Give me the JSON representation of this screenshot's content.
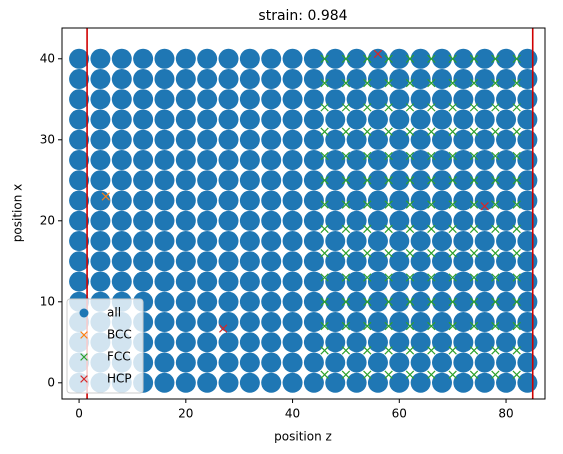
{
  "chart_data": {
    "type": "scatter",
    "title": "strain: 0.984",
    "x_label": "position z",
    "y_label": "position x",
    "xlim": [
      -3.2,
      87.3
    ],
    "ylim": [
      -2.0,
      43.8
    ],
    "xticks": [
      0,
      20,
      40,
      60,
      80
    ],
    "yticks": [
      0,
      10,
      20,
      30,
      40
    ],
    "legend_position": "lower left",
    "vlines": {
      "color": "#d00000",
      "x": [
        1.5,
        85
      ]
    },
    "series": [
      {
        "name": "all",
        "color": "#1f77b4",
        "marker": "o",
        "x": [
          0,
          4,
          8,
          12,
          16,
          20,
          24,
          28,
          32,
          36,
          40,
          44,
          48,
          52,
          56,
          60,
          64,
          68,
          72,
          76,
          80,
          84,
          0,
          4,
          8,
          12,
          16,
          20,
          24,
          28,
          32,
          36,
          40,
          44,
          48,
          52,
          56,
          60,
          64,
          68,
          72,
          76,
          80,
          84,
          0,
          4,
          8,
          12,
          16,
          20,
          24,
          28,
          32,
          36,
          40,
          44,
          48,
          52,
          56,
          60,
          64,
          68,
          72,
          76,
          80,
          84,
          0,
          4,
          8,
          12,
          16,
          20,
          24,
          28,
          32,
          36,
          40,
          44,
          48,
          52,
          56,
          60,
          64,
          68,
          72,
          76,
          80,
          84,
          0,
          4,
          8,
          12,
          16,
          20,
          24,
          28,
          32,
          36,
          40,
          44,
          48,
          52,
          56,
          60,
          64,
          68,
          72,
          76,
          80,
          84,
          0,
          4,
          8,
          12,
          16,
          20,
          24,
          28,
          32,
          36,
          40,
          44,
          48,
          52,
          56,
          60,
          64,
          68,
          72,
          76,
          80,
          84,
          0,
          4,
          8,
          12,
          16,
          20,
          24,
          28,
          32,
          36,
          40,
          44,
          48,
          52,
          56,
          60,
          64,
          68,
          72,
          76,
          80,
          84,
          0,
          4,
          8,
          12,
          16,
          20,
          24,
          28,
          32,
          36,
          40,
          44,
          48,
          52,
          56,
          60,
          64,
          68,
          72,
          76,
          80,
          84,
          0,
          4,
          8,
          12,
          16,
          20,
          24,
          28,
          32,
          36,
          40,
          44,
          48,
          52,
          56,
          60,
          64,
          68,
          72,
          76,
          80,
          84,
          0,
          4,
          8,
          12,
          16,
          20,
          24,
          28,
          32,
          36,
          40,
          44,
          48,
          52,
          56,
          60,
          64,
          68,
          72,
          76,
          80,
          84,
          0,
          4,
          8,
          12,
          16,
          20,
          24,
          28,
          32,
          36,
          40,
          44,
          48,
          52,
          56,
          60,
          64,
          68,
          72,
          76,
          80,
          84,
          0,
          4,
          8,
          12,
          16,
          20,
          24,
          28,
          32,
          36,
          40,
          44,
          48,
          52,
          56,
          60,
          64,
          68,
          72,
          76,
          80,
          84,
          0,
          4,
          8,
          12,
          16,
          20,
          24,
          28,
          32,
          36,
          40,
          44,
          48,
          52,
          56,
          60,
          64,
          68,
          72,
          76,
          80,
          84,
          0,
          4,
          8,
          12,
          16,
          20,
          24,
          28,
          32,
          36,
          40,
          44,
          48,
          52,
          56,
          60,
          64,
          68,
          72,
          76,
          80,
          84,
          0,
          4,
          8,
          12,
          16,
          20,
          24,
          28,
          32,
          36,
          40,
          44,
          48,
          52,
          56,
          60,
          64,
          68,
          72,
          76,
          80,
          84,
          0,
          4,
          8,
          12,
          16,
          20,
          24,
          28,
          32,
          36,
          40,
          44,
          48,
          52,
          56,
          60,
          64,
          68,
          72,
          76,
          80,
          84,
          0,
          4,
          8,
          12,
          16,
          20,
          24,
          28,
          32,
          36,
          40,
          44,
          48,
          52,
          56,
          60,
          64,
          68,
          72,
          76,
          80,
          84
        ],
        "y": [
          0,
          0,
          0,
          0,
          0,
          0,
          0,
          0,
          0,
          0,
          0,
          0,
          0,
          0,
          0,
          0,
          0,
          0,
          0,
          0,
          0,
          0,
          2.5,
          2.5,
          2.5,
          2.5,
          2.5,
          2.5,
          2.5,
          2.5,
          2.5,
          2.5,
          2.5,
          2.5,
          2.5,
          2.5,
          2.5,
          2.5,
          2.5,
          2.5,
          2.5,
          2.5,
          2.5,
          2.5,
          5,
          5,
          5,
          5,
          5,
          5,
          5,
          5,
          5,
          5,
          5,
          5,
          5,
          5,
          5,
          5,
          5,
          5,
          5,
          5,
          5,
          5,
          7.5,
          7.5,
          7.5,
          7.5,
          7.5,
          7.5,
          7.5,
          7.5,
          7.5,
          7.5,
          7.5,
          7.5,
          7.5,
          7.5,
          7.5,
          7.5,
          7.5,
          7.5,
          7.5,
          7.5,
          7.5,
          7.5,
          10,
          10,
          10,
          10,
          10,
          10,
          10,
          10,
          10,
          10,
          10,
          10,
          10,
          10,
          10,
          10,
          10,
          10,
          10,
          10,
          10,
          10,
          12.5,
          12.5,
          12.5,
          12.5,
          12.5,
          12.5,
          12.5,
          12.5,
          12.5,
          12.5,
          12.5,
          12.5,
          12.5,
          12.5,
          12.5,
          12.5,
          12.5,
          12.5,
          12.5,
          12.5,
          12.5,
          12.5,
          15,
          15,
          15,
          15,
          15,
          15,
          15,
          15,
          15,
          15,
          15,
          15,
          15,
          15,
          15,
          15,
          15,
          15,
          15,
          15,
          15,
          15,
          17.5,
          17.5,
          17.5,
          17.5,
          17.5,
          17.5,
          17.5,
          17.5,
          17.5,
          17.5,
          17.5,
          17.5,
          17.5,
          17.5,
          17.5,
          17.5,
          17.5,
          17.5,
          17.5,
          17.5,
          17.5,
          17.5,
          20,
          20,
          20,
          20,
          20,
          20,
          20,
          20,
          20,
          20,
          20,
          20,
          20,
          20,
          20,
          20,
          20,
          20,
          20,
          20,
          20,
          20,
          22.5,
          22.5,
          22.5,
          22.5,
          22.5,
          22.5,
          22.5,
          22.5,
          22.5,
          22.5,
          22.5,
          22.5,
          22.5,
          22.5,
          22.5,
          22.5,
          22.5,
          22.5,
          22.5,
          22.5,
          22.5,
          22.5,
          25,
          25,
          25,
          25,
          25,
          25,
          25,
          25,
          25,
          25,
          25,
          25,
          25,
          25,
          25,
          25,
          25,
          25,
          25,
          25,
          25,
          25,
          27.5,
          27.5,
          27.5,
          27.5,
          27.5,
          27.5,
          27.5,
          27.5,
          27.5,
          27.5,
          27.5,
          27.5,
          27.5,
          27.5,
          27.5,
          27.5,
          27.5,
          27.5,
          27.5,
          27.5,
          27.5,
          27.5,
          30,
          30,
          30,
          30,
          30,
          30,
          30,
          30,
          30,
          30,
          30,
          30,
          30,
          30,
          30,
          30,
          30,
          30,
          30,
          30,
          30,
          30,
          32.5,
          32.5,
          32.5,
          32.5,
          32.5,
          32.5,
          32.5,
          32.5,
          32.5,
          32.5,
          32.5,
          32.5,
          32.5,
          32.5,
          32.5,
          32.5,
          32.5,
          32.5,
          32.5,
          32.5,
          32.5,
          32.5,
          35,
          35,
          35,
          35,
          35,
          35,
          35,
          35,
          35,
          35,
          35,
          35,
          35,
          35,
          35,
          35,
          35,
          35,
          35,
          35,
          35,
          35,
          37.5,
          37.5,
          37.5,
          37.5,
          37.5,
          37.5,
          37.5,
          37.5,
          37.5,
          37.5,
          37.5,
          37.5,
          37.5,
          37.5,
          37.5,
          37.5,
          37.5,
          37.5,
          37.5,
          37.5,
          37.5,
          37.5,
          40,
          40,
          40,
          40,
          40,
          40,
          40,
          40,
          40,
          40,
          40,
          40,
          40,
          40,
          40,
          40,
          40,
          40,
          40,
          40,
          40,
          40
        ]
      },
      {
        "name": "BCC",
        "color": "#ff7f0e",
        "marker": "x",
        "x": [
          5
        ],
        "y": [
          23
        ]
      },
      {
        "name": "FCC",
        "color": "#2ca02c",
        "marker": "x",
        "x": [
          46,
          50,
          54,
          58,
          62,
          66,
          70,
          74,
          78,
          82,
          46,
          50,
          54,
          58,
          62,
          66,
          70,
          74,
          78,
          82,
          46,
          50,
          54,
          58,
          62,
          66,
          70,
          74,
          78,
          82,
          46,
          50,
          54,
          58,
          62,
          66,
          70,
          74,
          78,
          82,
          46,
          50,
          54,
          58,
          62,
          66,
          70,
          74,
          78,
          82,
          46,
          50,
          54,
          58,
          62,
          66,
          70,
          74,
          78,
          82,
          46,
          50,
          54,
          58,
          62,
          66,
          70,
          74,
          78,
          82,
          46,
          50,
          54,
          58,
          62,
          66,
          70,
          74,
          78,
          82,
          46,
          50,
          54,
          58,
          62,
          66,
          70,
          74,
          78,
          82,
          46,
          50,
          54,
          58,
          62,
          66,
          70,
          74,
          78,
          82,
          46,
          50,
          54,
          58,
          62,
          66,
          70,
          74,
          78,
          82,
          46,
          50,
          54,
          58,
          62,
          66,
          70,
          74,
          78,
          82,
          46,
          50,
          54,
          58,
          62,
          66,
          70,
          74,
          78,
          82,
          46,
          50,
          54,
          58,
          62,
          66,
          70,
          74,
          78,
          82
        ],
        "y": [
          1,
          1,
          1,
          1,
          1,
          1,
          1,
          1,
          1,
          1,
          4,
          4,
          4,
          4,
          4,
          4,
          4,
          4,
          4,
          4,
          7,
          7,
          7,
          7,
          7,
          7,
          7,
          7,
          7,
          7,
          10,
          10,
          10,
          10,
          10,
          10,
          10,
          10,
          10,
          10,
          13,
          13,
          13,
          13,
          13,
          13,
          13,
          13,
          13,
          13,
          16,
          16,
          16,
          16,
          16,
          16,
          16,
          16,
          16,
          16,
          19,
          19,
          19,
          19,
          19,
          19,
          19,
          19,
          19,
          19,
          22,
          22,
          22,
          22,
          22,
          22,
          22,
          22,
          22,
          22,
          25,
          25,
          25,
          25,
          25,
          25,
          25,
          25,
          25,
          25,
          28,
          28,
          28,
          28,
          28,
          28,
          28,
          28,
          28,
          28,
          31,
          31,
          31,
          31,
          31,
          31,
          31,
          31,
          31,
          31,
          34,
          34,
          34,
          34,
          34,
          34,
          34,
          34,
          34,
          34,
          37,
          37,
          37,
          37,
          37,
          37,
          37,
          37,
          37,
          37,
          40,
          40,
          40,
          40,
          40,
          40,
          40,
          40,
          40,
          40
        ]
      },
      {
        "name": "HCP",
        "color": "#d62728",
        "marker": "x",
        "x": [
          56,
          27,
          76
        ],
        "y": [
          40.6,
          6.7,
          21.8
        ]
      }
    ]
  }
}
